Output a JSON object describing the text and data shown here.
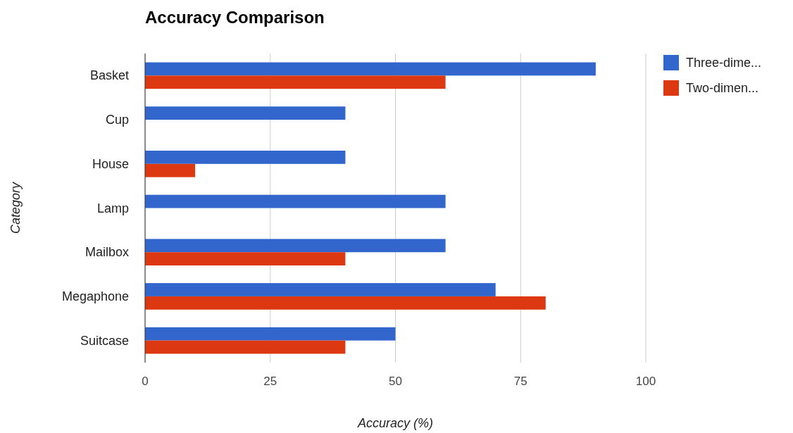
{
  "chart_data": {
    "type": "bar",
    "orientation": "horizontal",
    "title": "Accuracy Comparison",
    "xlabel": "Accuracy (%)",
    "ylabel": "Category",
    "categories": [
      "Basket",
      "Cup",
      "House",
      "Lamp",
      "Mailbox",
      "Megaphone",
      "Suitcase"
    ],
    "series": [
      {
        "name": "Three-dime...",
        "color": "#3366cc",
        "values": [
          90,
          40,
          40,
          60,
          60,
          70,
          50
        ]
      },
      {
        "name": "Two-dimen...",
        "color": "#dc3912",
        "values": [
          60,
          0,
          10,
          0,
          40,
          80,
          40
        ]
      }
    ],
    "xlim": [
      0,
      100
    ],
    "xticks": [
      0,
      25,
      50,
      75,
      100
    ],
    "grid": "x",
    "legend": "top right"
  }
}
